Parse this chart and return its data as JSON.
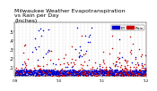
{
  "title": "Milwaukee Weather Evapotranspiration\nvs Rain per Day\n(Inches)",
  "title_fontsize": 4.5,
  "legend_labels": [
    "ET",
    "Rain"
  ],
  "legend_colors": [
    "#0000cc",
    "#cc0000"
  ],
  "ylim": [
    0,
    0.6
  ],
  "yticks": [
    0.1,
    0.2,
    0.3,
    0.4,
    0.5
  ],
  "ytick_labels": [
    ".1",
    ".2",
    ".3",
    ".4",
    ".5"
  ],
  "ytick_fontsize": 3.5,
  "xtick_fontsize": 3.0,
  "bg_color": "#ffffff",
  "grid_color": "#aaaaaa",
  "dot_size": 1.2,
  "et_color": "#0000cc",
  "rain_color": "#cc0000"
}
